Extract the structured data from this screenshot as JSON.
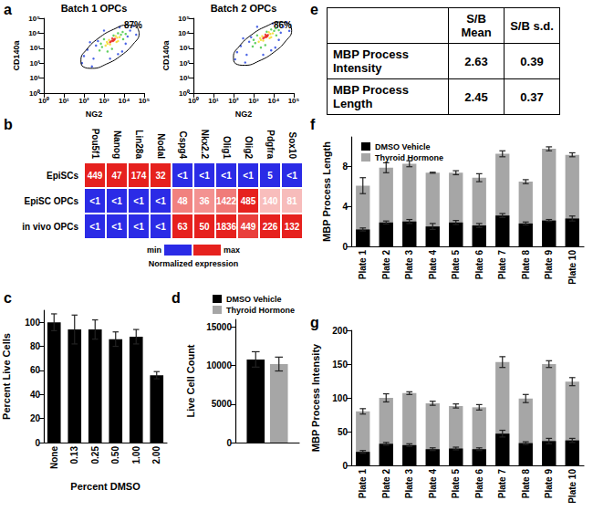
{
  "chart_data": [
    {
      "type": "scatter",
      "panel": "a",
      "title": "Batch 1 OPCs",
      "xlabel": "NG2",
      "ylabel": "CD140a",
      "log": true,
      "grid": false,
      "xlim": [
        1,
        100000
      ],
      "ylim": [
        1,
        100000
      ],
      "xticks": [
        {
          "value": 1,
          "label": "10⁰"
        },
        {
          "value": 10,
          "label": "10¹"
        },
        {
          "value": 100,
          "label": "10²"
        },
        {
          "value": 1000,
          "label": "10³"
        },
        {
          "value": 10000,
          "label": "10⁴"
        },
        {
          "value": 100000,
          "label": "10⁵"
        }
      ],
      "yticks": [
        {
          "value": 1,
          "label": "10⁰"
        },
        {
          "value": 10,
          "label": "10¹"
        },
        {
          "value": 100,
          "label": "10²"
        },
        {
          "value": 1000,
          "label": "10³"
        },
        {
          "value": 10000,
          "label": "10⁴"
        },
        {
          "value": 100000,
          "label": "10⁵"
        }
      ],
      "series": [
        {
          "color": "#2040e0",
          "x": [
            300,
            20000,
            150,
            12000,
            500,
            30000,
            2000,
            80,
            400,
            15000,
            8000,
            1000,
            250,
            6000,
            40000,
            100,
            5000,
            200
          ],
          "y": [
            200,
            15000,
            800,
            2000,
            3000,
            30000,
            200,
            100,
            1500,
            6000,
            600,
            15000,
            60,
            25000,
            8000,
            300,
            400,
            2500
          ]
        },
        {
          "color": "#3cc43c",
          "x": [
            800,
            7000,
            1000,
            9000,
            600,
            5000,
            12000,
            2500,
            700,
            8500,
            3000,
            1500
          ],
          "y": [
            1200,
            8000,
            4000,
            4000,
            700,
            10000,
            9000,
            900,
            2000,
            12000,
            7000,
            600
          ]
        },
        {
          "color": "#f2d81c",
          "x": [
            1500,
            4500,
            1800,
            5000,
            1200,
            3800,
            6000,
            2000,
            4200,
            1400
          ],
          "y": [
            2000,
            5000,
            3500,
            3000,
            1500,
            6500,
            5500,
            1800,
            2600,
            2600
          ]
        },
        {
          "color": "#e8241c",
          "x": [
            2500,
            3000,
            2200,
            2800,
            3500,
            2000,
            3200,
            2600
          ],
          "y": [
            3200,
            3800,
            2800,
            3000,
            4200,
            2500,
            3500,
            4500
          ]
        }
      ],
      "gate": {
        "label": "87%",
        "x": [
          43600,
          15100,
          3020,
          537,
          138,
          71,
          91,
          263,
          1320,
          7410,
          28800,
          56200,
          43600
        ],
        "y": [
          27500,
          35500,
          18200,
          4680,
          832,
          166,
          58,
          45,
          87,
          339,
          1910,
          9550,
          27500
        ]
      }
    },
    {
      "type": "scatter",
      "title": "Batch 2 OPCs",
      "xlabel": "NG2",
      "ylabel": "CD140a",
      "log": true,
      "grid": false,
      "xlim": [
        1,
        100000
      ],
      "ylim": [
        1,
        100000
      ],
      "xticks": [
        {
          "value": 1,
          "label": "10⁰"
        },
        {
          "value": 10,
          "label": "10¹"
        },
        {
          "value": 100,
          "label": "10²"
        },
        {
          "value": 1000,
          "label": "10³"
        },
        {
          "value": 10000,
          "label": "10⁴"
        },
        {
          "value": 100000,
          "label": "10⁵"
        }
      ],
      "yticks": [
        {
          "value": 1,
          "label": "10⁰"
        },
        {
          "value": 10,
          "label": "10¹"
        },
        {
          "value": 100,
          "label": "10²"
        },
        {
          "value": 1000,
          "label": "10³"
        },
        {
          "value": 10000,
          "label": "10⁴"
        },
        {
          "value": 100000,
          "label": "10⁵"
        }
      ],
      "series": [
        {
          "color": "#2040e0",
          "x": [
            450,
            30000,
            230,
            18000,
            750,
            45000,
            3000,
            120,
            600,
            22500,
            12000,
            1500,
            380,
            9000,
            60000,
            150,
            7500,
            300
          ],
          "y": [
            360,
            27000,
            1400,
            3600,
            5400,
            54000,
            360,
            180,
            2700,
            10800,
            1100,
            27000,
            110,
            45000,
            14400,
            540,
            720,
            4500
          ]
        },
        {
          "color": "#3cc43c",
          "x": [
            1200,
            10500,
            1500,
            13500,
            900,
            7500,
            18000,
            3800,
            1000,
            12700,
            4500,
            2300
          ],
          "y": [
            2200,
            14400,
            7200,
            7200,
            1300,
            18000,
            16200,
            1600,
            3600,
            21600,
            12600,
            1100
          ]
        },
        {
          "color": "#f2d81c",
          "x": [
            2300,
            6800,
            2700,
            7500,
            1800,
            5700,
            9000,
            3000,
            6300,
            2100
          ],
          "y": [
            3600,
            9000,
            6300,
            5400,
            2700,
            11700,
            9900,
            3200,
            4700,
            4700
          ]
        },
        {
          "color": "#e8241c",
          "x": [
            3800,
            4500,
            3300,
            4200,
            5200,
            3000,
            4800,
            3900
          ],
          "y": [
            5800,
            6800,
            5000,
            5400,
            7600,
            4500,
            6300,
            8100
          ]
        }
      ],
      "gate": {
        "label": "86%",
        "x": [
          61000,
          21100,
          4230,
          752,
          193,
          99,
          127,
          368,
          1850,
          10400,
          40300,
          78700,
          61000
        ],
        "y": [
          44000,
          56800,
          29100,
          7490,
          1330,
          266,
          93,
          72,
          139,
          542,
          3060,
          15300,
          44000
        ]
      }
    },
    {
      "type": "heatmap",
      "panel": "b",
      "columns": [
        "Pou5f1",
        "Nanog",
        "Lin28a",
        "Nodal",
        "Cspg4",
        "Nkx2.2",
        "Olig1",
        "Olig2",
        "Pdgfra",
        "Sox10"
      ],
      "rows": [
        "EpiSCs",
        "EpiSC OPCs",
        "in vivo OPCs"
      ],
      "values": [
        [
          449,
          47,
          174,
          32,
          0.5,
          0.5,
          0.5,
          0.5,
          5,
          0.5
        ],
        [
          0.5,
          0.5,
          0.5,
          0.5,
          48,
          36,
          1422,
          485,
          140,
          81
        ],
        [
          0.5,
          0.5,
          0.5,
          0.5,
          63,
          50,
          1836,
          449,
          226,
          132
        ]
      ],
      "value_labels": [
        [
          "449",
          "47",
          "174",
          "32",
          "<1",
          "<1",
          "<1",
          "<1",
          "5",
          "<1"
        ],
        [
          "<1",
          "<1",
          "<1",
          "<1",
          "48",
          "36",
          "1422",
          "485",
          "140",
          "81"
        ],
        [
          "<1",
          "<1",
          "<1",
          "<1",
          "63",
          "50",
          "1836",
          "449",
          "226",
          "132"
        ]
      ],
      "color_scale": {
        "min_label": "min",
        "max_label": "max",
        "title": "Normalized expression",
        "colors": [
          "#2b2be6",
          "#e6211e"
        ]
      }
    },
    {
      "type": "bar",
      "panel": "c",
      "xlabel": "Percent DMSO",
      "ylabel": "Percent Live Cells",
      "grid": false,
      "categories": [
        "None",
        "0.13",
        "0.25",
        "0.50",
        "1.00",
        "2.00"
      ],
      "color": "#000000",
      "values": [
        100,
        94,
        94,
        86,
        88,
        56
      ],
      "errors": [
        7,
        12,
        8,
        6,
        6,
        3
      ],
      "ylim": [
        0,
        110
      ],
      "yticks": [
        0,
        20,
        40,
        60,
        80,
        100
      ]
    },
    {
      "type": "bar",
      "panel": "d",
      "ylabel": "Live Cell Count",
      "grid": false,
      "legend": "top",
      "tick_labels": "y",
      "categories": [
        null
      ],
      "series": [
        {
          "name": "DMSO Vehicle",
          "color": "#000000",
          "values": [
            10800
          ],
          "errors": [
            1000
          ]
        },
        {
          "name": "Thyroid Hormone",
          "color": "#a6a6a6",
          "values": [
            10200
          ],
          "errors": [
            900
          ]
        }
      ],
      "ylim": [
        0,
        16000
      ],
      "yticks": [
        0,
        5000,
        10000,
        15000
      ]
    },
    {
      "type": "table",
      "panel": "e",
      "columns": [
        "S/B Mean",
        "S/B s.d."
      ],
      "rows": [
        {
          "label": "MBP Process Intensity",
          "values": [
            2.63,
            0.39
          ]
        },
        {
          "label": "MBP Process Length",
          "values": [
            2.45,
            0.37
          ]
        }
      ]
    },
    {
      "type": "overlay",
      "panel": "f",
      "ylabel": "MBP Process Length",
      "grid": false,
      "legend": "upper left",
      "categories": [
        "Plate 1",
        "Plate 2",
        "Plate 3",
        "Plate 4",
        "Plate 5",
        "Plate 6",
        "Plate 7",
        "Plate 8",
        "Plate 9",
        "Plate 10"
      ],
      "series": [
        {
          "name": "DMSO Vehicle",
          "color": "#000000",
          "values": [
            1.7,
            2.4,
            2.5,
            2.0,
            2.4,
            2.1,
            3.1,
            2.3,
            2.6,
            2.8
          ],
          "errors": [
            0.15,
            0.15,
            0.2,
            0.3,
            0.2,
            0.2,
            0.2,
            0.15,
            0.1,
            0.25
          ]
        },
        {
          "name": "Thyroid Hormone",
          "color": "#a6a6a6",
          "values": [
            6.1,
            7.9,
            8.3,
            7.4,
            7.4,
            6.9,
            9.3,
            6.5,
            9.8,
            9.2
          ],
          "errors": [
            0.8,
            0.5,
            0.3,
            0.05,
            0.2,
            0.4,
            0.3,
            0.2,
            0.2,
            0.2
          ]
        }
      ],
      "ylim": [
        0,
        11
      ],
      "yticks": [
        0,
        4,
        8
      ]
    },
    {
      "type": "overlay",
      "panel": "g",
      "ylabel": "MBP Process Intensity",
      "grid": false,
      "categories": [
        "Plate 1",
        "Plate 2",
        "Plate 3",
        "Plate 4",
        "Plate 5",
        "Plate 6",
        "Plate 7",
        "Plate 8",
        "Plate 9",
        "Plate 10"
      ],
      "series": [
        {
          "color": "#000000",
          "values": [
            20,
            32,
            30,
            24,
            25,
            24,
            47,
            33,
            36,
            37
          ],
          "errors": [
            2,
            2,
            2,
            2,
            2,
            2,
            5,
            2,
            4,
            3
          ]
        },
        {
          "color": "#a6a6a6",
          "values": [
            80,
            100,
            107,
            92,
            88,
            86,
            153,
            99,
            150,
            124
          ],
          "errors": [
            4,
            6,
            2,
            3,
            3,
            4,
            8,
            6,
            5,
            6
          ]
        }
      ],
      "ylim": [
        0,
        200
      ],
      "yticks": [
        0,
        50,
        100,
        150,
        200
      ]
    }
  ]
}
